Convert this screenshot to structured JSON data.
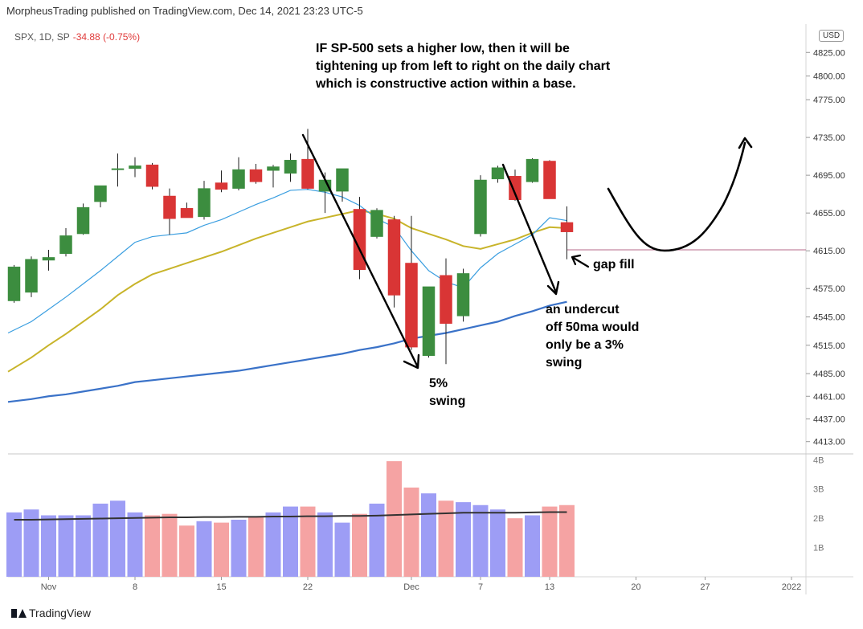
{
  "header": {
    "publisher": "MorpheusTrading published on TradingView.com, Dec 14, 2021 23:23 UTC-5"
  },
  "legend": {
    "symbol": "SPX, 1D, SP",
    "change": "-34.88 (-0.75%)"
  },
  "currency": "USD",
  "annotations": {
    "note_line1": "IF SP-500 sets a higher low, then it will be",
    "note_line2": "tightening up from left to right on the daily chart",
    "note_line3": "which is constructive action within a base.",
    "gap_fill": "gap fill",
    "swing5_line1": "5%",
    "swing5_line2": "swing",
    "undercut_line1": "an undercut",
    "undercut_line2": "off 50ma would",
    "undercut_line3": "only be a 3%",
    "undercut_line4": "swing"
  },
  "footer": {
    "brand": "TradingView"
  },
  "colors": {
    "up": "#3c8d3f",
    "down": "#d93535",
    "ma_fast": "#3a9ee0",
    "ma_mid": "#c8b42a",
    "ma_slow": "#3a72c8",
    "vol_up": "#9d9df5",
    "vol_down": "#f5a3a3",
    "vol_ma": "#333333",
    "level": "#b46a8a",
    "arrows": "#000000"
  },
  "chart_data": [
    {
      "type": "candlestick",
      "title": "SPX, 1D, SP",
      "ylim": [
        4400,
        4855
      ],
      "price_ticks": [
        "4825.00",
        "4800.00",
        "4775.00",
        "4735.00",
        "4695.00",
        "4655.00",
        "4615.00",
        "4575.00",
        "4545.00",
        "4515.00",
        "4485.00",
        "4461.00",
        "4437.00",
        "4413.00"
      ],
      "x_tick_labels": [
        {
          "label": "Nov",
          "index": 2
        },
        {
          "label": "8",
          "index": 7
        },
        {
          "label": "15",
          "index": 12
        },
        {
          "label": "22",
          "index": 17
        },
        {
          "label": "Dec",
          "index": 23
        },
        {
          "label": "7",
          "index": 27
        },
        {
          "label": "13",
          "index": 31
        },
        {
          "label": "20",
          "index": 36
        },
        {
          "label": "27",
          "index": 40
        },
        {
          "label": "2022",
          "index": 45
        }
      ],
      "candles": [
        {
          "o": 4562,
          "h": 4600,
          "l": 4560,
          "c": 4598
        },
        {
          "o": 4571,
          "h": 4609,
          "l": 4566,
          "c": 4606
        },
        {
          "o": 4605,
          "h": 4616,
          "l": 4594,
          "c": 4608
        },
        {
          "o": 4612,
          "h": 4639,
          "l": 4609,
          "c": 4631
        },
        {
          "o": 4633,
          "h": 4665,
          "l": 4632,
          "c": 4661
        },
        {
          "o": 4667,
          "h": 4684,
          "l": 4661,
          "c": 4684
        },
        {
          "o": 4701,
          "h": 4718,
          "l": 4683,
          "c": 4702
        },
        {
          "o": 4702,
          "h": 4714,
          "l": 4693,
          "c": 4705
        },
        {
          "o": 4706,
          "h": 4708,
          "l": 4680,
          "c": 4683
        },
        {
          "o": 4673,
          "h": 4681,
          "l": 4632,
          "c": 4649
        },
        {
          "o": 4660,
          "h": 4666,
          "l": 4650,
          "c": 4650
        },
        {
          "o": 4651,
          "h": 4689,
          "l": 4648,
          "c": 4681
        },
        {
          "o": 4687,
          "h": 4700,
          "l": 4677,
          "c": 4680
        },
        {
          "o": 4681,
          "h": 4714,
          "l": 4679,
          "c": 4701
        },
        {
          "o": 4701,
          "h": 4707,
          "l": 4686,
          "c": 4688
        },
        {
          "o": 4700,
          "h": 4706,
          "l": 4682,
          "c": 4704
        },
        {
          "o": 4697,
          "h": 4718,
          "l": 4688,
          "c": 4711
        },
        {
          "o": 4712,
          "h": 4744,
          "l": 4680,
          "c": 4681
        },
        {
          "o": 4678,
          "h": 4698,
          "l": 4655,
          "c": 4690
        },
        {
          "o": 4678,
          "h": 4701,
          "l": 4667,
          "c": 4702
        },
        {
          "o": 4659,
          "h": 4672,
          "l": 4585,
          "c": 4595
        },
        {
          "o": 4630,
          "h": 4660,
          "l": 4628,
          "c": 4658
        },
        {
          "o": 4648,
          "h": 4652,
          "l": 4555,
          "c": 4568
        },
        {
          "o": 4602,
          "h": 4652,
          "l": 4510,
          "c": 4513
        },
        {
          "o": 4504,
          "h": 4576,
          "l": 4502,
          "c": 4577
        },
        {
          "o": 4589,
          "h": 4607,
          "l": 4495,
          "c": 4538
        },
        {
          "o": 4546,
          "h": 4596,
          "l": 4540,
          "c": 4591
        },
        {
          "o": 4633,
          "h": 4695,
          "l": 4630,
          "c": 4690
        },
        {
          "o": 4691,
          "h": 4705,
          "l": 4687,
          "c": 4703
        },
        {
          "o": 4694,
          "h": 4701,
          "l": 4668,
          "c": 4669
        },
        {
          "o": 4688,
          "h": 4713,
          "l": 4687,
          "c": 4712
        },
        {
          "o": 4710,
          "h": 4711,
          "l": 4670,
          "c": 4670
        },
        {
          "o": 4645,
          "h": 4662,
          "l": 4606,
          "c": 4635
        }
      ],
      "ma_fast": [
        4528,
        4540,
        4553,
        4566,
        4580,
        4594,
        4609,
        4624,
        4630,
        4632,
        4634,
        4642,
        4648,
        4656,
        4664,
        4671,
        4679,
        4680,
        4677,
        4672,
        4663,
        4649,
        4640,
        4615,
        4594,
        4582,
        4576,
        4597,
        4612,
        4622,
        4632,
        4650,
        4647
      ],
      "ma_mid": [
        4487,
        4502,
        4515,
        4527,
        4540,
        4553,
        4568,
        4580,
        4590,
        4596,
        4602,
        4608,
        4614,
        4621,
        4628,
        4634,
        4640,
        4646,
        4650,
        4654,
        4658,
        4654,
        4649,
        4639,
        4633,
        4627,
        4620,
        4617,
        4622,
        4627,
        4634,
        4640,
        4639
      ],
      "ma_slow": [
        4455,
        4458,
        4461,
        4463,
        4466,
        4469,
        4472,
        4476,
        4478,
        4480,
        4482,
        4484,
        4486,
        4488,
        4491,
        4494,
        4497,
        4500,
        4503,
        4506,
        4510,
        4513,
        4517,
        4522,
        4525,
        4528,
        4532,
        4536,
        4540,
        4546,
        4551,
        4557,
        4561
      ],
      "level": 4616
    },
    {
      "type": "bar",
      "title": "Volume",
      "ylim": [
        0,
        4.2
      ],
      "tick_labels": [
        "4B",
        "3B",
        "2B",
        "1B"
      ],
      "tick_values": [
        4,
        3,
        2,
        1
      ],
      "volumes": [
        2.2,
        2.3,
        2.1,
        2.1,
        2.1,
        2.5,
        2.6,
        2.2,
        2.1,
        2.15,
        1.75,
        1.9,
        1.85,
        1.95,
        2.05,
        2.2,
        2.4,
        2.4,
        2.2,
        1.85,
        2.15,
        2.5,
        3.95,
        3.05,
        2.85,
        2.6,
        2.55,
        2.45,
        2.3,
        2.0,
        2.1,
        2.4,
        2.45
      ],
      "volume_ma": [
        1.95,
        1.95,
        1.96,
        1.97,
        1.98,
        1.99,
        2.0,
        2.01,
        2.02,
        2.03,
        2.03,
        2.04,
        2.04,
        2.05,
        2.05,
        2.06,
        2.06,
        2.07,
        2.07,
        2.08,
        2.08,
        2.09,
        2.11,
        2.13,
        2.15,
        2.17,
        2.19,
        2.19,
        2.19,
        2.19,
        2.2,
        2.21,
        2.21
      ]
    }
  ]
}
